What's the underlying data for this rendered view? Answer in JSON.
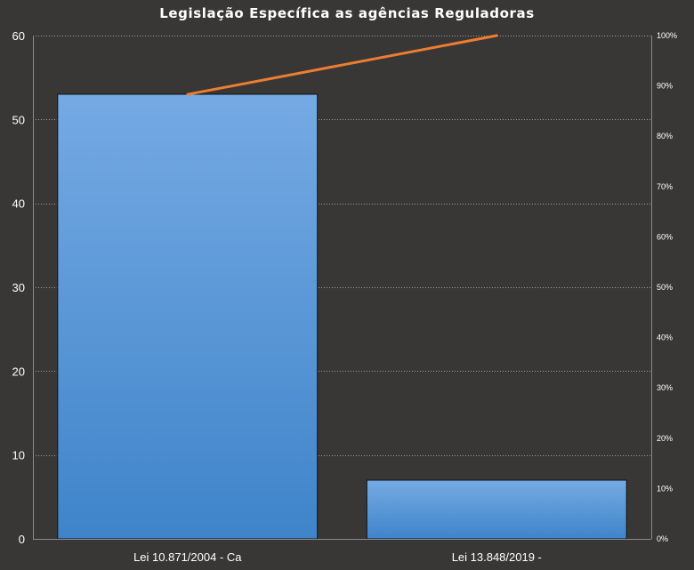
{
  "chart_data": {
    "type": "bar",
    "title": "Legislação Específica as agências Reguladoras",
    "categories": [
      "Lei 10.871/2004 - Ca",
      "Lei 13.848/2019 -"
    ],
    "values": [
      53,
      7
    ],
    "cumulative_percent": [
      88.3,
      100
    ],
    "ylim": [
      0,
      60
    ],
    "y_ticks": [
      0,
      10,
      20,
      30,
      40,
      50,
      60
    ],
    "y2lim": [
      0,
      100
    ],
    "y2_ticks": [
      "0%",
      "10%",
      "20%",
      "30%",
      "40%",
      "50%",
      "60%",
      "70%",
      "80%",
      "90%",
      "100%"
    ],
    "grid": true,
    "legend": "none",
    "colors": {
      "background": "#383736",
      "bar_top": "#75aae4",
      "bar_bottom": "#3f84c9",
      "bar_border": "#111111",
      "line": "#ed7d31",
      "gridline": "#a0a0a0",
      "text": "#ffffff"
    }
  }
}
